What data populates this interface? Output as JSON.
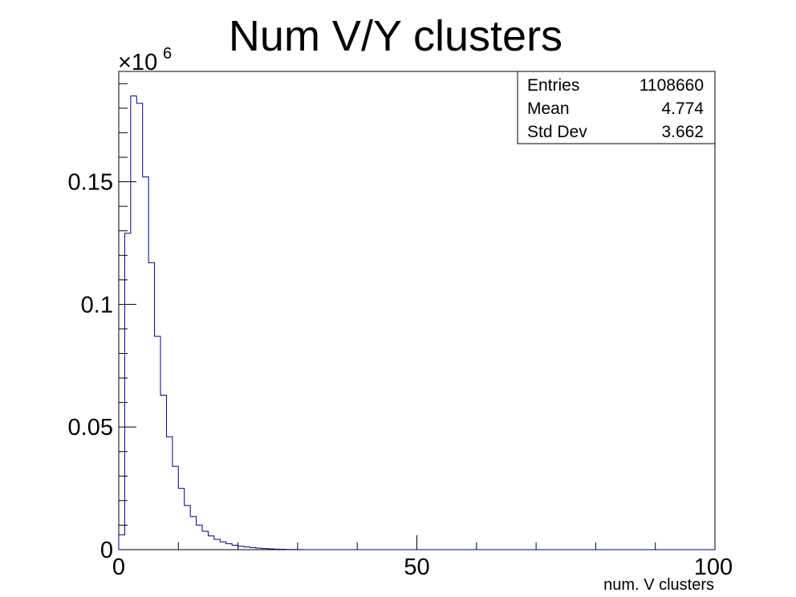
{
  "chart_data": {
    "type": "bar",
    "title": "Num V/Y clusters",
    "xlabel": "num. V clusters",
    "ylabel": "",
    "y_multiplier": "×10",
    "y_multiplier_exp": "6",
    "xlim": [
      0,
      100
    ],
    "ylim": [
      0,
      0.195
    ],
    "bin_width": 1,
    "x_ticks": [
      {
        "value": 0,
        "label": "0"
      },
      {
        "value": 50,
        "label": "50"
      },
      {
        "value": 100,
        "label": "100"
      }
    ],
    "y_ticks": [
      {
        "value": 0,
        "label": "0"
      },
      {
        "value": 0.05,
        "label": "0.05"
      },
      {
        "value": 0.1,
        "label": "0.1"
      },
      {
        "value": 0.15,
        "label": "0.15"
      }
    ],
    "grid": false,
    "line_color": "#00007f",
    "values": [
      0.006,
      0.129,
      0.185,
      0.182,
      0.152,
      0.117,
      0.087,
      0.063,
      0.046,
      0.034,
      0.025,
      0.018,
      0.0135,
      0.01,
      0.0075,
      0.0056,
      0.0042,
      0.0032,
      0.0024,
      0.0018,
      0.0014,
      0.0011,
      0.00085,
      0.0006,
      0.00045,
      0.00032,
      0.00022,
      0.00015,
      0.0001,
      7e-05,
      4e-05,
      2e-05
    ],
    "stats": [
      {
        "label": "Entries",
        "value": "1108660"
      },
      {
        "label": "Mean",
        "value": "4.774"
      },
      {
        "label": "Std Dev",
        "value": "3.662"
      }
    ]
  }
}
